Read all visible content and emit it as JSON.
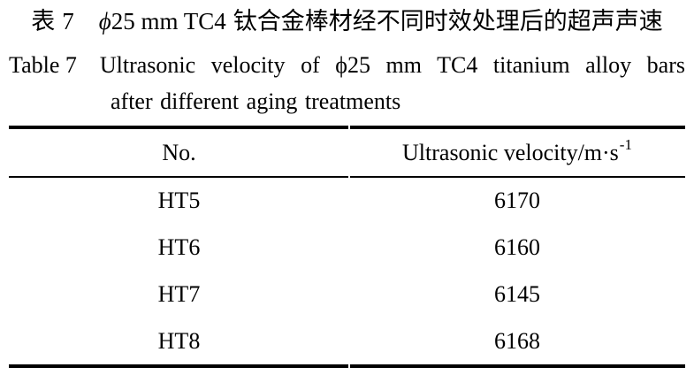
{
  "page": {
    "background": "#ffffff",
    "text_color": "#000000"
  },
  "caption_zh": {
    "hanzi_label": "表",
    "number": "7",
    "phi": "ϕ",
    "latin": "25 mm TC4",
    "text": "钛合金棒材经不同时效处理后的超声声速"
  },
  "caption_en": {
    "label": "Table 7",
    "line1_rest": "Ultrasonic velocity of ϕ25 mm TC4 titanium alloy bars",
    "line2": "after different aging treatments"
  },
  "table": {
    "header": {
      "no": "No.",
      "unit_base": "Ultrasonic velocity/m·s",
      "unit_sup": "-1"
    },
    "rows": [
      {
        "no": "HT5",
        "velocity": "6170"
      },
      {
        "no": "HT6",
        "velocity": "6160"
      },
      {
        "no": "HT7",
        "velocity": "6145"
      },
      {
        "no": "HT8",
        "velocity": "6168"
      }
    ]
  },
  "chart_data": {
    "type": "table",
    "title": "Table 7 Ultrasonic velocity of ϕ25 mm TC4 titanium alloy bars after different aging treatments",
    "title_zh": "表 7 ϕ25 mm TC4 钛合金棒材经不同时效处理后的超声声速",
    "columns": [
      "No.",
      "Ultrasonic velocity/m·s-1"
    ],
    "rows": [
      [
        "HT5",
        6170
      ],
      [
        "HT6",
        6160
      ],
      [
        "HT7",
        6145
      ],
      [
        "HT8",
        6168
      ]
    ]
  }
}
